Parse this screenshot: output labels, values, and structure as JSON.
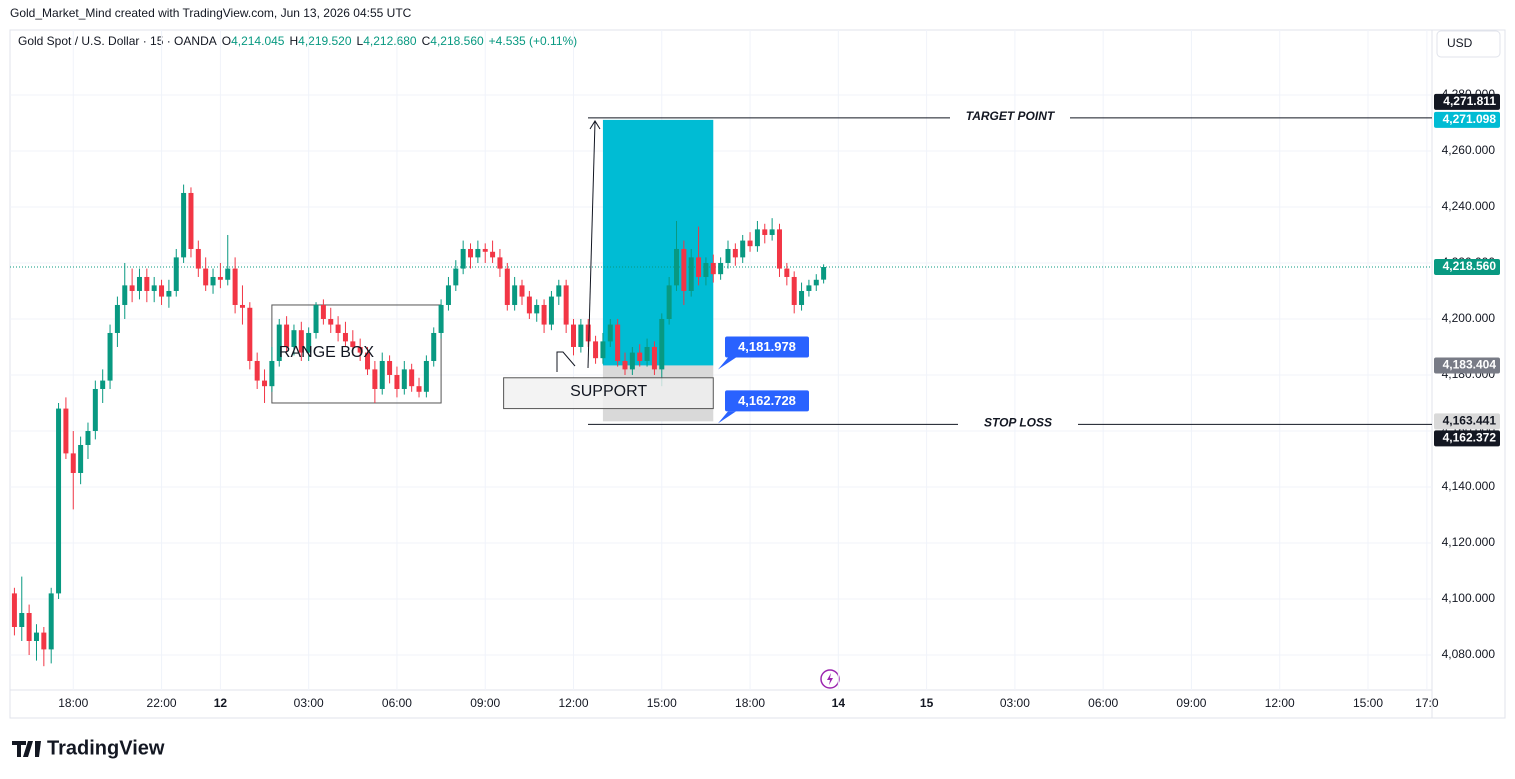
{
  "header": {
    "attribution": "Gold_Market_Mind created with TradingView.com, Jun 13, 2026 04:55 UTC",
    "symbol": "Gold Spot / U.S. Dollar · 15 · OANDA",
    "ohlc": [
      {
        "letter": "O",
        "value": "4,214.045"
      },
      {
        "letter": "H",
        "value": "4,219.520"
      },
      {
        "letter": "L",
        "value": "4,212.680"
      },
      {
        "letter": "C",
        "value": "4,218.560"
      }
    ],
    "change": "+4.535 (+0.11%)"
  },
  "currency": "USD",
  "brand": "TradingView",
  "chart_data": {
    "type": "candlestick",
    "up_color": "#089981",
    "down_color": "#f23645",
    "grid": true,
    "xlim": [
      -8.6,
      184.7
    ],
    "ylim": [
      4067.5,
      4303.2
    ],
    "xticks": [
      {
        "value": 0,
        "label": "18:00"
      },
      {
        "value": 12,
        "label": "22:00"
      },
      {
        "value": 20,
        "label": "12"
      },
      {
        "value": 32,
        "label": "03:00"
      },
      {
        "value": 44,
        "label": "06:00"
      },
      {
        "value": 56,
        "label": "09:00"
      },
      {
        "value": 68,
        "label": "12:00"
      },
      {
        "value": 80,
        "label": "15:00"
      },
      {
        "value": 92,
        "label": "18:00"
      },
      {
        "value": 104,
        "label": "14"
      },
      {
        "value": 116,
        "label": "15"
      },
      {
        "value": 128,
        "label": "03:00"
      },
      {
        "value": 140,
        "label": "06:00"
      },
      {
        "value": 152,
        "label": "09:00"
      },
      {
        "value": 164,
        "label": "12:00"
      },
      {
        "value": 176,
        "label": "15:00"
      },
      {
        "value": 184,
        "label": "17:0"
      }
    ],
    "yticks": [
      {
        "value": 4080,
        "label": "4,080.000"
      },
      {
        "value": 4100,
        "label": "4,100.000"
      },
      {
        "value": 4120,
        "label": "4,120.000"
      },
      {
        "value": 4140,
        "label": "4,140.000"
      },
      {
        "value": 4160,
        "label": "4,160.000"
      },
      {
        "value": 4180,
        "label": "4,180.000"
      },
      {
        "value": 4200,
        "label": "4,200.000"
      },
      {
        "value": 4220,
        "label": "4,220.000"
      },
      {
        "value": 4240,
        "label": "4,240.000"
      },
      {
        "value": 4260,
        "label": "4,260.000"
      },
      {
        "value": 4280,
        "label": "4,280.000"
      }
    ],
    "x": [
      -8,
      -7,
      -6,
      -5,
      -4,
      -3,
      -2,
      -1,
      0,
      1,
      2,
      3,
      4,
      5,
      6,
      7,
      8,
      9,
      10,
      11,
      12,
      13,
      14,
      15,
      16,
      17,
      18,
      19,
      20,
      21,
      22,
      23,
      24,
      25,
      26,
      27,
      28,
      29,
      30,
      31,
      32,
      33,
      34,
      35,
      36,
      37,
      38,
      39,
      40,
      41,
      42,
      43,
      44,
      45,
      46,
      47,
      48,
      49,
      50,
      51,
      52,
      53,
      54,
      55,
      56,
      57,
      58,
      59,
      60,
      61,
      62,
      63,
      64,
      65,
      66,
      67,
      68,
      69,
      70,
      71,
      72,
      73,
      74,
      75,
      76,
      77,
      78,
      79,
      80,
      81,
      82,
      83,
      84,
      85,
      86,
      87,
      88,
      89,
      90,
      91,
      92,
      93,
      94,
      95,
      96,
      97,
      98,
      99,
      100,
      101,
      102
    ],
    "open": [
      4102,
      4090,
      4095,
      4085,
      4088,
      4082,
      4102,
      4168,
      4152,
      4145,
      4155,
      4160,
      4175,
      4178,
      4195,
      4205,
      4212,
      4210,
      4215,
      4210,
      4212,
      4208,
      4210,
      4222,
      4245,
      4225,
      4218,
      4212,
      4215,
      4214,
      4218,
      4205,
      4204,
      4185,
      4178,
      4176,
      4185,
      4198,
      4190,
      4196,
      4188,
      4195,
      4205,
      4200,
      4198,
      4195,
      4192,
      4190,
      4188,
      4182,
      4175,
      4185,
      4180,
      4175,
      4182,
      4176,
      4174,
      4185,
      4195,
      4205,
      4212,
      4218,
      4225,
      4222,
      4225,
      4224,
      4222,
      4218,
      4205,
      4212,
      4208,
      4202,
      4205,
      4198,
      4208,
      4212,
      4198,
      4190,
      4198,
      4192,
      4186,
      4192,
      4198,
      4185,
      4182,
      4188,
      4185,
      4190,
      4182,
      4200,
      4212,
      4225,
      4210,
      4222,
      4215,
      4220,
      4216,
      4220,
      4225,
      4222,
      4228,
      4226,
      4232,
      4230,
      4232,
      4218,
      4215,
      4205,
      4210,
      4212,
      4214.045
    ],
    "high": [
      4104,
      4108,
      4098,
      4091,
      4090,
      4104,
      4170,
      4172,
      4160,
      4158,
      4163,
      4178,
      4182,
      4198,
      4208,
      4220,
      4218,
      4218,
      4218,
      4215,
      4214,
      4214,
      4225,
      4248,
      4247,
      4228,
      4222,
      4218,
      4220,
      4230,
      4222,
      4212,
      4206,
      4188,
      4182,
      4190,
      4200,
      4201,
      4198,
      4199,
      4197,
      4206,
      4207,
      4204,
      4201,
      4199,
      4196,
      4193,
      4190,
      4185,
      4188,
      4187,
      4183,
      4185,
      4184,
      4179,
      4187,
      4197,
      4207,
      4215,
      4221,
      4228,
      4227,
      4228,
      4227,
      4228,
      4225,
      4220,
      4215,
      4214,
      4210,
      4207,
      4207,
      4210,
      4214,
      4214,
      4200,
      4200,
      4200,
      4194,
      4195,
      4200,
      4200,
      4188,
      4190,
      4191,
      4193,
      4192,
      4202,
      4215,
      4235,
      4228,
      4225,
      4233,
      4222,
      4223,
      4222,
      4228,
      4227,
      4230,
      4231,
      4235,
      4234,
      4236,
      4234,
      4220,
      4217,
      4213,
      4214,
      4216,
      4219.52
    ],
    "low": [
      4087,
      4085,
      4080,
      4078,
      4076,
      4077,
      4100,
      4150,
      4132,
      4141,
      4150,
      4157,
      4170,
      4175,
      4190,
      4200,
      4206,
      4207,
      4206,
      4206,
      4205,
      4204,
      4208,
      4220,
      4222,
      4215,
      4210,
      4209,
      4211,
      4212,
      4202,
      4198,
      4182,
      4175,
      4170,
      4174,
      4183,
      4188,
      4187,
      4185,
      4185,
      4193,
      4198,
      4195,
      4192,
      4190,
      4187,
      4185,
      4180,
      4170,
      4173,
      4177,
      4172,
      4173,
      4174,
      4172,
      4172,
      4183,
      4193,
      4203,
      4210,
      4216,
      4218,
      4220,
      4220,
      4220,
      4215,
      4203,
      4203,
      4205,
      4200,
      4199,
      4195,
      4196,
      4205,
      4195,
      4187,
      4188,
      4190,
      4184,
      4184,
      4190,
      4183,
      4180,
      4180,
      4183,
      4183,
      4180,
      4176,
      4198,
      4210,
      4205,
      4208,
      4212,
      4212,
      4213,
      4214,
      4218,
      4219,
      4220,
      4224,
      4224,
      4227,
      4228,
      4215,
      4212,
      4202,
      4203,
      4208,
      4210,
      4212.68
    ],
    "close": [
      4090,
      4095,
      4085,
      4088,
      4082,
      4102,
      4168,
      4152,
      4145,
      4155,
      4160,
      4175,
      4178,
      4195,
      4205,
      4212,
      4210,
      4215,
      4210,
      4212,
      4208,
      4210,
      4222,
      4245,
      4225,
      4218,
      4212,
      4215,
      4214,
      4218,
      4205,
      4204,
      4185,
      4178,
      4176,
      4185,
      4198,
      4190,
      4196,
      4188,
      4195,
      4205,
      4200,
      4198,
      4195,
      4192,
      4190,
      4188,
      4182,
      4175,
      4185,
      4180,
      4175,
      4182,
      4176,
      4174,
      4185,
      4195,
      4205,
      4212,
      4218,
      4225,
      4222,
      4225,
      4224,
      4222,
      4218,
      4205,
      4212,
      4208,
      4202,
      4205,
      4198,
      4208,
      4212,
      4198,
      4190,
      4198,
      4192,
      4186,
      4192,
      4198,
      4185,
      4182,
      4188,
      4185,
      4190,
      4182,
      4200,
      4212,
      4225,
      4210,
      4222,
      4215,
      4220,
      4216,
      4220,
      4225,
      4222,
      4228,
      4226,
      4232,
      4230,
      4232,
      4218,
      4215,
      4205,
      4210,
      4212,
      4214,
      4218.56
    ],
    "range_box": {
      "text": "RANGE BOX",
      "x": [
        27,
        50
      ],
      "y": [
        4170,
        4205
      ]
    },
    "support_box": {
      "text": "SUPPORT",
      "x": [
        58.5,
        87
      ],
      "y": [
        4168,
        4179
      ]
    },
    "position": {
      "x": [
        72,
        87
      ],
      "entry": 4183.404,
      "target": 4271.098,
      "stop": 4163.441,
      "profit_color": "#00bcd4",
      "loss_color": "#d9d9d9"
    },
    "levels": [
      {
        "text": "TARGET POINT",
        "value": 4271.811
      },
      {
        "text": "STOP LOSS",
        "value": 4162.372
      }
    ],
    "callouts": [
      {
        "value": 4181.978,
        "label": "4,181.978"
      },
      {
        "value": 4162.728,
        "label": "4,162.728"
      }
    ],
    "last_price": {
      "value": 4218.56,
      "color": "#089981"
    },
    "price_labels": [
      {
        "value": 4271.811,
        "label": "4,271.811",
        "color": "#131722"
      },
      {
        "value": 4271.098,
        "label": "4,271.098",
        "color": "#00bcd4"
      },
      {
        "value": 4218.56,
        "label": "4,218.560",
        "color": "#089981"
      },
      {
        "value": 4183.404,
        "label": "4,183.404",
        "color": "#787b86"
      },
      {
        "value": 4163.441,
        "label": "4,163.441",
        "color": "#d9d9d9"
      },
      {
        "value": 4162.372,
        "label": "4,162.372",
        "color": "#131722"
      }
    ]
  }
}
